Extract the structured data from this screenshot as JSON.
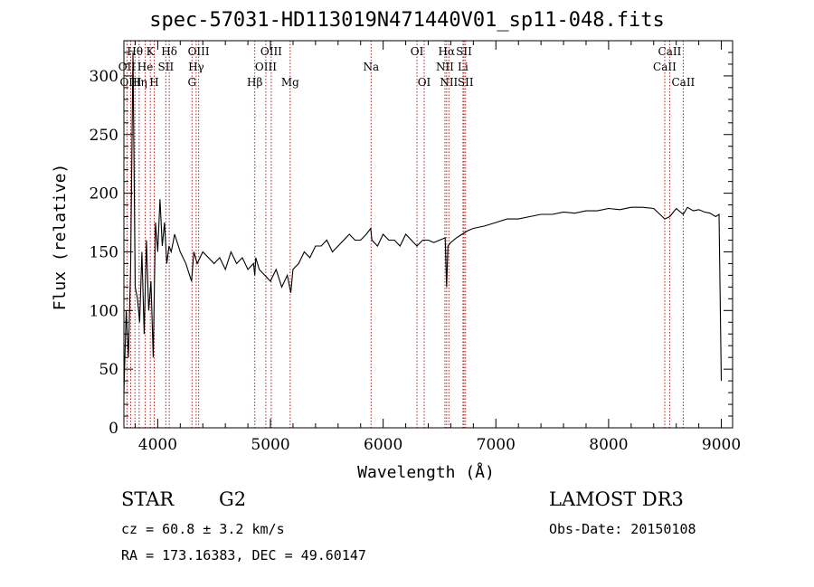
{
  "chart_data": {
    "type": "line",
    "title": "spec-57031-HD113019N471440V01_sp11-048.fits",
    "xlabel": "Wavelength (Å)",
    "ylabel": "Flux (relative)",
    "xlim": [
      3700,
      9100
    ],
    "ylim": [
      0,
      330
    ],
    "xticks": [
      4000,
      5000,
      6000,
      7000,
      8000,
      9000
    ],
    "yticks": [
      0,
      50,
      100,
      150,
      200,
      250,
      300
    ],
    "grid": false,
    "series": [
      {
        "x": [
          3700,
          3720,
          3740,
          3760,
          3780,
          3800,
          3820,
          3840,
          3860,
          3880,
          3900,
          3920,
          3940,
          3960,
          3980,
          4000,
          4020,
          4040,
          4060,
          4080,
          4100,
          4120,
          4150,
          4200,
          4250,
          4300,
          4320,
          4350,
          4400,
          4450,
          4500,
          4550,
          4600,
          4650,
          4700,
          4750,
          4800,
          4850,
          4861,
          4870,
          4900,
          4950,
          5000,
          5050,
          5100,
          5150,
          5180,
          5200,
          5250,
          5300,
          5350,
          5400,
          5450,
          5500,
          5550,
          5600,
          5650,
          5700,
          5750,
          5800,
          5850,
          5890,
          5900,
          5950,
          6000,
          6050,
          6100,
          6150,
          6200,
          6250,
          6300,
          6350,
          6400,
          6450,
          6500,
          6550,
          6563,
          6575,
          6600,
          6650,
          6700,
          6750,
          6800,
          6900,
          7000,
          7100,
          7200,
          7300,
          7400,
          7500,
          7600,
          7700,
          7800,
          7900,
          8000,
          8100,
          8200,
          8300,
          8400,
          8498,
          8542,
          8600,
          8662,
          8700,
          8750,
          8800,
          8850,
          8900,
          8950,
          8980,
          9000
        ],
        "values": [
          30,
          100,
          60,
          140,
          320,
          120,
          110,
          90,
          150,
          80,
          160,
          100,
          125,
          60,
          175,
          150,
          195,
          155,
          175,
          140,
          155,
          150,
          165,
          150,
          140,
          125,
          150,
          140,
          150,
          145,
          140,
          145,
          135,
          150,
          140,
          145,
          135,
          140,
          130,
          145,
          135,
          130,
          125,
          135,
          120,
          130,
          115,
          135,
          140,
          150,
          145,
          155,
          155,
          160,
          150,
          155,
          160,
          165,
          160,
          160,
          165,
          170,
          160,
          155,
          165,
          160,
          160,
          155,
          165,
          160,
          155,
          160,
          160,
          158,
          160,
          162,
          120,
          155,
          158,
          162,
          165,
          168,
          170,
          172,
          175,
          178,
          178,
          180,
          182,
          182,
          184,
          183,
          185,
          185,
          187,
          186,
          188,
          188,
          187,
          178,
          180,
          187,
          182,
          188,
          185,
          186,
          184,
          183,
          180,
          182,
          40
        ]
      }
    ],
    "line_labels": {
      "row1": [
        {
          "text": "Hθ",
          "x": 3798
        },
        {
          "text": "K",
          "x": 3934
        },
        {
          "text": "Hδ",
          "x": 4102
        },
        {
          "text": "OIII",
          "x": 4363
        },
        {
          "text": "OIII",
          "x": 5007
        },
        {
          "text": "OI",
          "x": 6300
        },
        {
          "text": "Hα",
          "x": 6563
        },
        {
          "text": "SII",
          "x": 6717
        },
        {
          "text": "CaII",
          "x": 8542
        }
      ],
      "row2": [
        {
          "text": "OII",
          "x": 3727
        },
        {
          "text": "He",
          "x": 3889
        },
        {
          "text": "SII",
          "x": 4072
        },
        {
          "text": "Hγ",
          "x": 4341
        },
        {
          "text": "OIII",
          "x": 4959
        },
        {
          "text": "Na",
          "x": 5893
        },
        {
          "text": "NII",
          "x": 6548
        },
        {
          "text": "Li",
          "x": 6708
        },
        {
          "text": "CaII",
          "x": 8498
        }
      ],
      "row3": [
        {
          "text": "OIII",
          "x": 3760
        },
        {
          "text": "Hη",
          "x": 3835
        },
        {
          "text": "H",
          "x": 3969
        },
        {
          "text": "G",
          "x": 4304
        },
        {
          "text": "Hβ",
          "x": 4861
        },
        {
          "text": "Mg",
          "x": 5175
        },
        {
          "text": "OI",
          "x": 6364
        },
        {
          "text": "NII",
          "x": 6583
        },
        {
          "text": "SII",
          "x": 6731
        },
        {
          "text": "CaII",
          "x": 8662
        }
      ]
    },
    "line_marker_color": "#b22222",
    "line_color": "#000000"
  },
  "info": {
    "object": "STAR",
    "subclass": "G2",
    "survey": "LAMOST DR3",
    "cz": "cz = 60.8 ± 3.2 km/s",
    "obs_date": "Obs-Date: 20150108",
    "radec": "RA = 173.16383, DEC =  49.60147"
  }
}
